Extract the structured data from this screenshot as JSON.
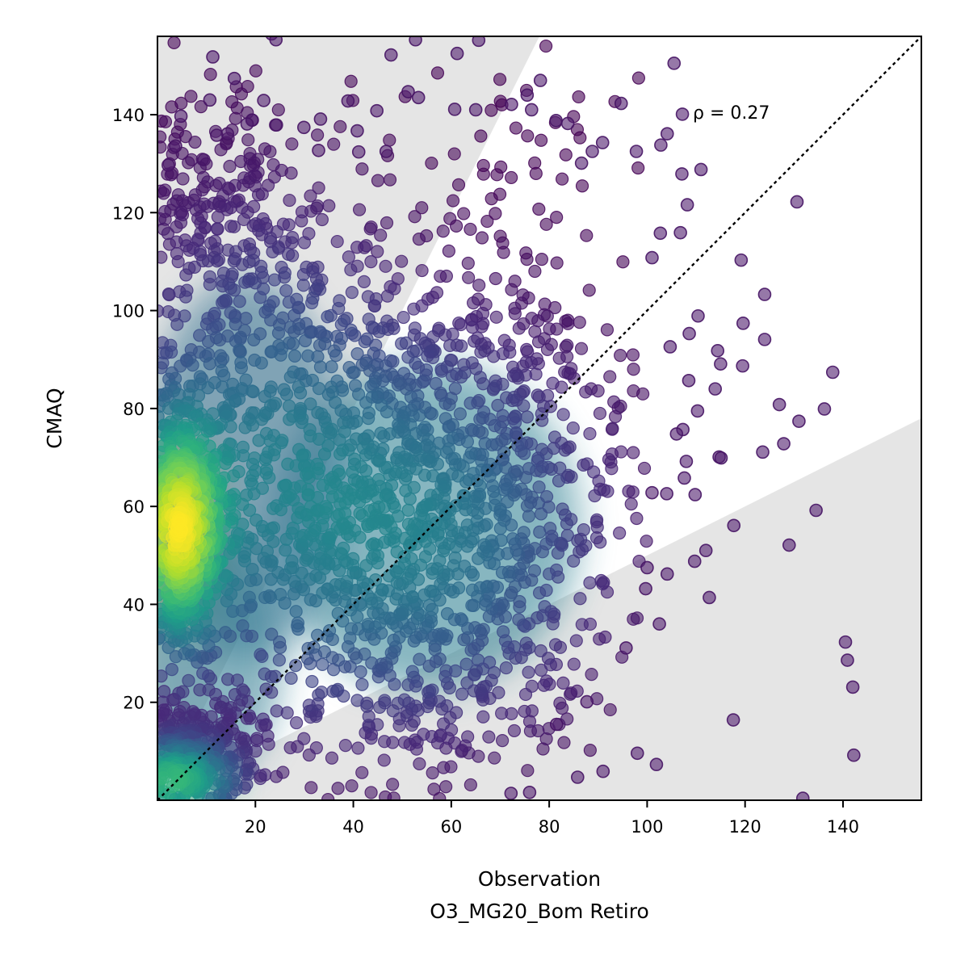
{
  "chart_data": {
    "type": "scatter",
    "xlabel": "Observation",
    "xlabel_line2": "O3_MG20_Bom Retiro",
    "ylabel": "CMAQ",
    "annotation": "ρ = 0.27",
    "xlim": [
      0,
      156
    ],
    "ylim": [
      0,
      156
    ],
    "x_ticks": [
      20,
      40,
      60,
      80,
      100,
      120,
      140
    ],
    "y_ticks": [
      20,
      40,
      60,
      80,
      100,
      120,
      140
    ],
    "grid": false,
    "colormap": "viridis (point density)",
    "shaded_band": {
      "upper_slope": 2.0,
      "lower_slope": 0.5,
      "color": "#e5e5e5"
    },
    "reference_line": {
      "slope": 1,
      "style": "dotted",
      "color": "#000000"
    },
    "outlier_points": [
      [
        105.5,
        150.5
      ],
      [
        94.7,
        142.3
      ],
      [
        102.8,
        133.8
      ],
      [
        104.1,
        136.1
      ],
      [
        107.2,
        140.1
      ],
      [
        111.0,
        128.8
      ],
      [
        107.1,
        127.9
      ],
      [
        108.2,
        121.6
      ],
      [
        130.6,
        122.2
      ],
      [
        102.7,
        115.8
      ],
      [
        106.8,
        115.9
      ],
      [
        119.2,
        110.3
      ],
      [
        101.0,
        110.8
      ],
      [
        124.0,
        103.3
      ],
      [
        110.4,
        98.9
      ],
      [
        119.6,
        97.4
      ],
      [
        108.6,
        95.3
      ],
      [
        124.0,
        94.1
      ],
      [
        114.4,
        91.8
      ],
      [
        115.0,
        89.1
      ],
      [
        104.7,
        92.6
      ],
      [
        137.9,
        87.4
      ],
      [
        119.5,
        88.7
      ],
      [
        108.5,
        85.7
      ],
      [
        113.9,
        84.0
      ],
      [
        127.0,
        80.8
      ],
      [
        136.2,
        79.9
      ],
      [
        131.0,
        77.4
      ],
      [
        110.3,
        79.5
      ],
      [
        107.3,
        75.7
      ],
      [
        106.0,
        74.8
      ],
      [
        127.9,
        72.8
      ],
      [
        123.6,
        71.1
      ],
      [
        114.7,
        70.1
      ],
      [
        115.1,
        69.9
      ],
      [
        108.0,
        69.2
      ],
      [
        107.6,
        65.8
      ],
      [
        101.0,
        62.8
      ],
      [
        109.8,
        62.4
      ],
      [
        104.0,
        62.6
      ],
      [
        134.5,
        59.2
      ],
      [
        129.0,
        52.1
      ],
      [
        117.7,
        56.1
      ],
      [
        112.0,
        51.0
      ],
      [
        109.7,
        48.8
      ],
      [
        104.1,
        46.2
      ],
      [
        100.0,
        47.5
      ],
      [
        112.7,
        41.4
      ],
      [
        99.7,
        43.2
      ],
      [
        102.5,
        36.0
      ],
      [
        95.7,
        31.1
      ],
      [
        140.5,
        32.3
      ],
      [
        140.9,
        28.6
      ],
      [
        142.0,
        23.1
      ],
      [
        117.6,
        16.4
      ],
      [
        142.2,
        9.2
      ],
      [
        98.0,
        9.6
      ],
      [
        101.9,
        7.3
      ],
      [
        91.0,
        5.9
      ],
      [
        85.8,
        4.7
      ],
      [
        131.8,
        0.4
      ],
      [
        87.7,
        20.1
      ],
      [
        81.5,
        15.5
      ],
      [
        76.0,
        1.6
      ],
      [
        72.2,
        1.4
      ],
      [
        65.0,
        141.0
      ],
      [
        60.7,
        141.1
      ],
      [
        65.6,
        155.2
      ],
      [
        61.2,
        152.5
      ],
      [
        52.7,
        155.3
      ],
      [
        53.3,
        143.5
      ],
      [
        51.2,
        144.7
      ],
      [
        47.7,
        152.2
      ],
      [
        23.3,
        156.5
      ],
      [
        24.2,
        155.3
      ],
      [
        11.3,
        151.8
      ],
      [
        15.7,
        147.4
      ],
      [
        10.7,
        143.0
      ],
      [
        21.7,
        142.9
      ],
      [
        4.8,
        139.7
      ],
      [
        38.9,
        142.8
      ],
      [
        44.8,
        140.8
      ],
      [
        33.3,
        139.1
      ],
      [
        29.9,
        137.4
      ],
      [
        40.8,
        136.7
      ],
      [
        14.3,
        136.1
      ],
      [
        19.3,
        138.9
      ],
      [
        24.3,
        137.9
      ],
      [
        12.1,
        135.8
      ],
      [
        18.3,
        138.1
      ],
      [
        46.7,
        132.5
      ],
      [
        41.1,
        132.4
      ],
      [
        32.9,
        132.7
      ],
      [
        3.7,
        133.6
      ],
      [
        2.2,
        129.7
      ],
      [
        78.2,
        147.0
      ],
      [
        75.5,
        144.0
      ],
      [
        83.8,
        138.2
      ],
      [
        81.4,
        138.8
      ],
      [
        90.9,
        134.3
      ],
      [
        97.8,
        132.5
      ],
      [
        76.4,
        141.0
      ],
      [
        72.3,
        142.1
      ],
      [
        86.6,
        130.1
      ],
      [
        88.8,
        132.5
      ]
    ]
  }
}
